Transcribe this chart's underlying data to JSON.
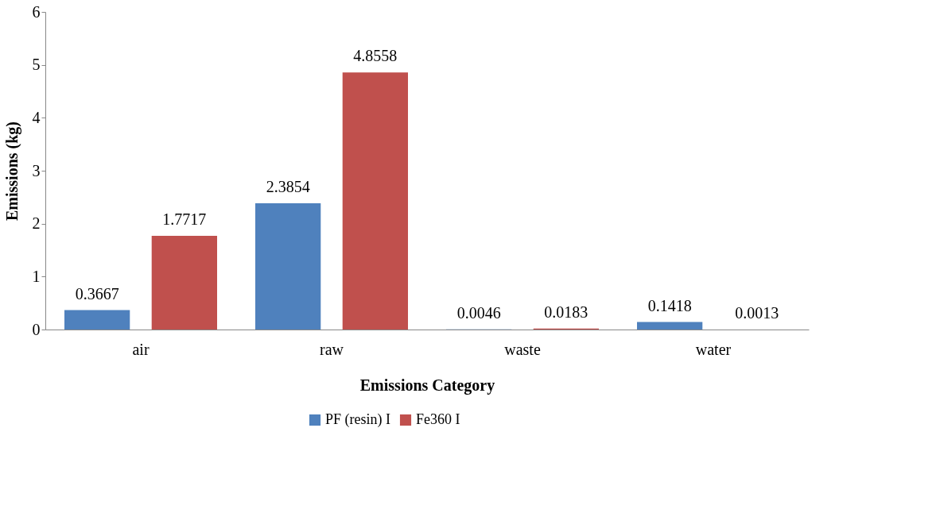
{
  "chart_data": {
    "type": "bar",
    "xlabel": "Emissions Category",
    "ylabel": "Emissions (kg)",
    "categories": [
      "air",
      "raw",
      "waste",
      "water"
    ],
    "series": [
      {
        "name": "PF (resin) I",
        "color": "#4f81bd",
        "values": [
          0.3667,
          2.3854,
          0.0046,
          0.1418
        ]
      },
      {
        "name": "Fe360 I",
        "color": "#c0504d",
        "values": [
          1.7717,
          4.8558,
          0.0183,
          0.0013
        ]
      }
    ],
    "ylim": [
      0,
      6
    ],
    "yticks": [
      0,
      1,
      2,
      3,
      4,
      5,
      6
    ],
    "grid": false,
    "legend": "bottom",
    "data_labels": true
  }
}
